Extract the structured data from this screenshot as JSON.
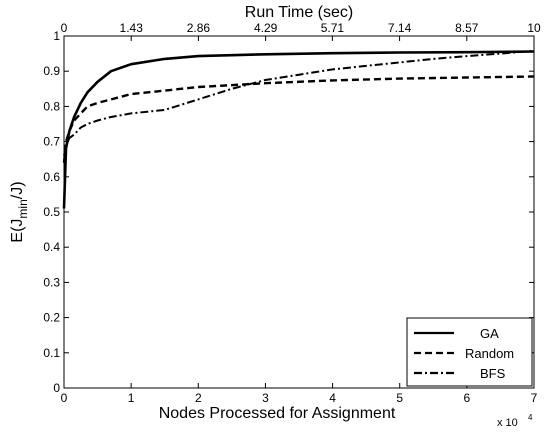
{
  "chart_data": {
    "type": "line",
    "title": "",
    "xlabel": "Nodes Processed for Assignment",
    "x_multiplier": "x 10",
    "x_multiplier_exp": "4",
    "ylabel_main": "E(J",
    "ylabel_sub": "min",
    "ylabel_tail": "/J)",
    "xlim": [
      0,
      70000
    ],
    "ylim": [
      0,
      1
    ],
    "x_ticks": [
      0,
      10000,
      20000,
      30000,
      40000,
      50000,
      60000,
      70000
    ],
    "x_tick_labels": [
      "0",
      "1",
      "2",
      "3",
      "4",
      "5",
      "6",
      "7"
    ],
    "y_ticks": [
      0,
      0.1,
      0.2,
      0.3,
      0.4,
      0.5,
      0.6,
      0.7,
      0.8,
      0.9,
      1
    ],
    "y_tick_labels": [
      "0",
      "0.1",
      "0.2",
      "0.3",
      "0.4",
      "0.5",
      "0.6",
      "0.7",
      "0.8",
      "0.9",
      "1"
    ],
    "top_axis": {
      "label": "Run Time (sec)",
      "range": [
        0,
        10
      ],
      "ticks": [
        0,
        1.43,
        2.86,
        4.29,
        5.71,
        7.14,
        8.57,
        10
      ],
      "tick_labels": [
        "0",
        "1.43",
        "2.86",
        "4.29",
        "5.71",
        "7.14",
        "8.57",
        "10"
      ]
    },
    "grid": false,
    "legend_position": "bottom-right",
    "series": [
      {
        "name": "GA",
        "style": "solid",
        "x": [
          0,
          300,
          800,
          1500,
          2500,
          3500,
          5000,
          7000,
          10000,
          15000,
          20000,
          30000,
          40000,
          50000,
          60000,
          70000
        ],
        "values": [
          0.51,
          0.68,
          0.73,
          0.77,
          0.81,
          0.84,
          0.87,
          0.9,
          0.92,
          0.935,
          0.943,
          0.948,
          0.951,
          0.953,
          0.954,
          0.956
        ]
      },
      {
        "name": "Random",
        "style": "dashed",
        "x": [
          0,
          300,
          800,
          1500,
          2500,
          3500,
          5000,
          7000,
          10000,
          15000,
          20000,
          30000,
          40000,
          50000,
          60000,
          70000
        ],
        "values": [
          0.64,
          0.7,
          0.73,
          0.76,
          0.78,
          0.8,
          0.81,
          0.82,
          0.835,
          0.845,
          0.855,
          0.866,
          0.874,
          0.879,
          0.882,
          0.885
        ]
      },
      {
        "name": "BFS",
        "style": "dashdot",
        "x": [
          0,
          300,
          800,
          1500,
          2500,
          3500,
          5000,
          7000,
          10000,
          15000,
          20000,
          25000,
          30000,
          35000,
          40000,
          45000,
          50000,
          55000,
          60000,
          65000,
          70000
        ],
        "values": [
          0.66,
          0.69,
          0.71,
          0.72,
          0.74,
          0.75,
          0.76,
          0.77,
          0.78,
          0.79,
          0.82,
          0.85,
          0.875,
          0.89,
          0.905,
          0.915,
          0.925,
          0.935,
          0.943,
          0.95,
          0.958
        ]
      }
    ]
  }
}
